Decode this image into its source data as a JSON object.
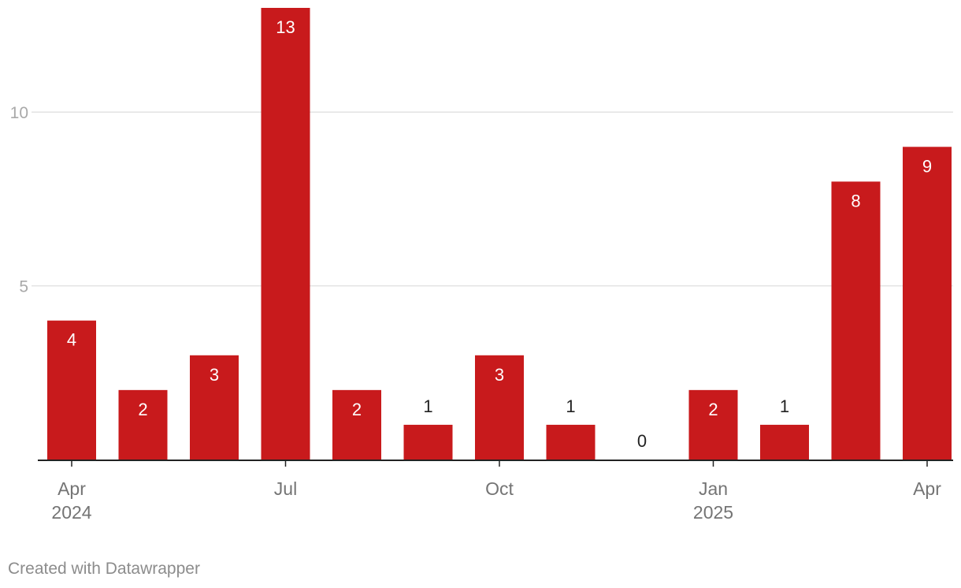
{
  "chart_data": {
    "type": "bar",
    "categories": [
      "2024-04",
      "2024-05",
      "2024-06",
      "2024-07",
      "2024-08",
      "2024-09",
      "2024-10",
      "2024-11",
      "2024-12",
      "2025-01",
      "2025-02",
      "2025-03",
      "2025-04"
    ],
    "values": [
      4,
      2,
      3,
      13,
      2,
      1,
      3,
      1,
      0,
      2,
      1,
      8,
      9
    ],
    "ylim": [
      0,
      13
    ],
    "yticks": [
      5,
      10
    ],
    "grid": true,
    "xtick_labels": [
      {
        "category": "2024-04",
        "month": "Apr",
        "year": "2024"
      },
      {
        "category": "2024-07",
        "month": "Jul",
        "year": ""
      },
      {
        "category": "2024-10",
        "month": "Oct",
        "year": ""
      },
      {
        "category": "2025-01",
        "month": "Jan",
        "year": "2025"
      },
      {
        "category": "2025-04",
        "month": "Apr",
        "year": ""
      }
    ],
    "bar_color": "#c81a1c"
  },
  "footer": {
    "credit": "Created with Datawrapper"
  }
}
